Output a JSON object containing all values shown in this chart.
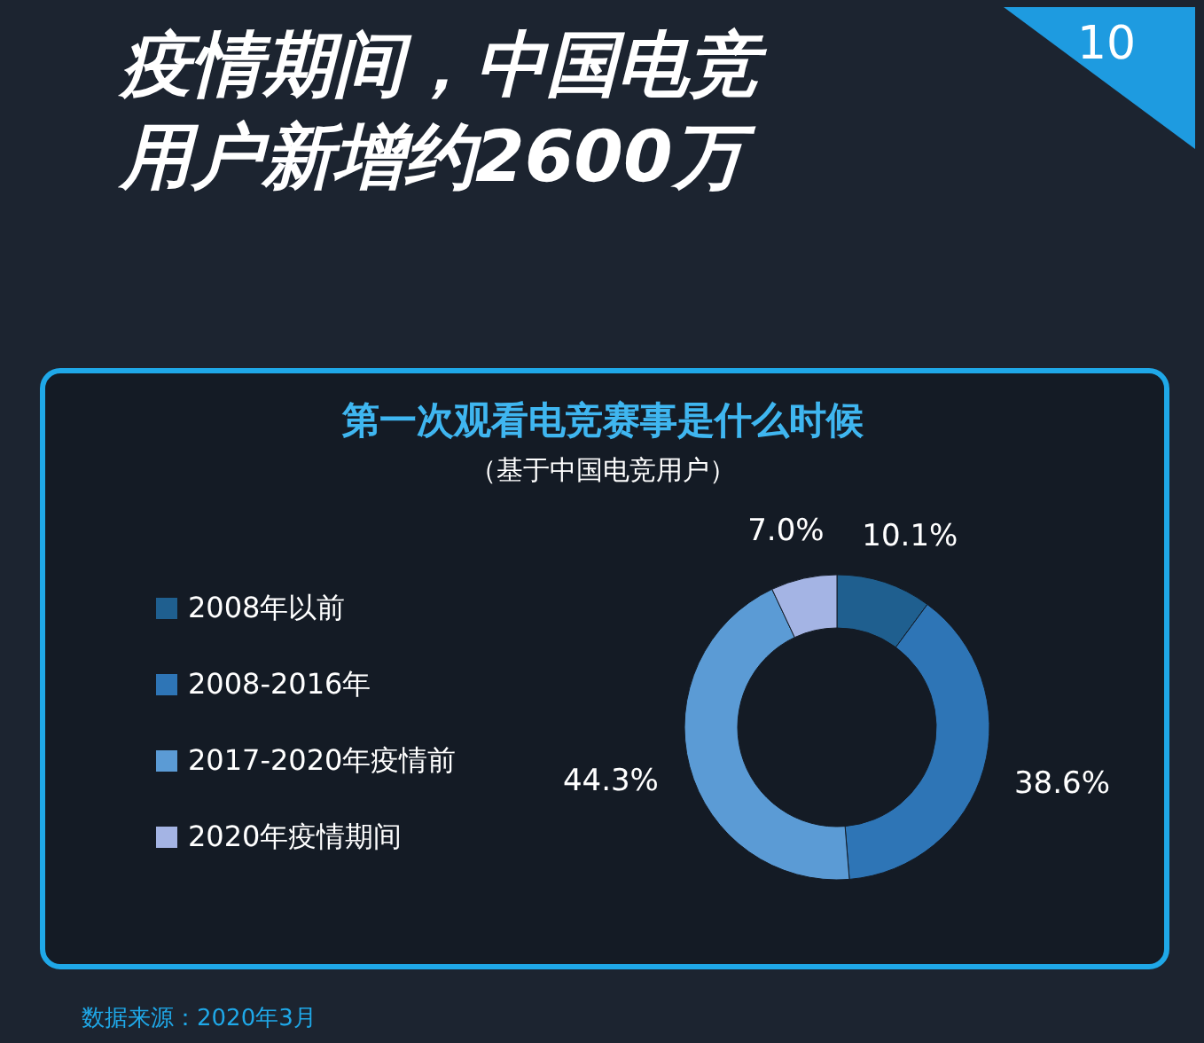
{
  "chart_data": {
    "type": "donut",
    "title": "疫情期间，中国电竞用户新增约2600万",
    "subtitle": "第一次观看电竞赛事是什么时候",
    "annotations": [
      "（基于中国电竞用户）",
      "10",
      "数据来源：2020年3月"
    ],
    "categories": [
      "2008年以前",
      "2008-2016年",
      "2017-2020年疫情前",
      "2020年疫情期间"
    ],
    "values": [
      10.1,
      38.6,
      44.3,
      7.0
    ],
    "colors": [
      "#1f5f8f",
      "#2e75b6",
      "#5b9bd5",
      "#a4b4e4"
    ],
    "value_labels": [
      "10.1%",
      "38.6%",
      "44.3%",
      "7.0%"
    ],
    "legend": "left"
  }
}
